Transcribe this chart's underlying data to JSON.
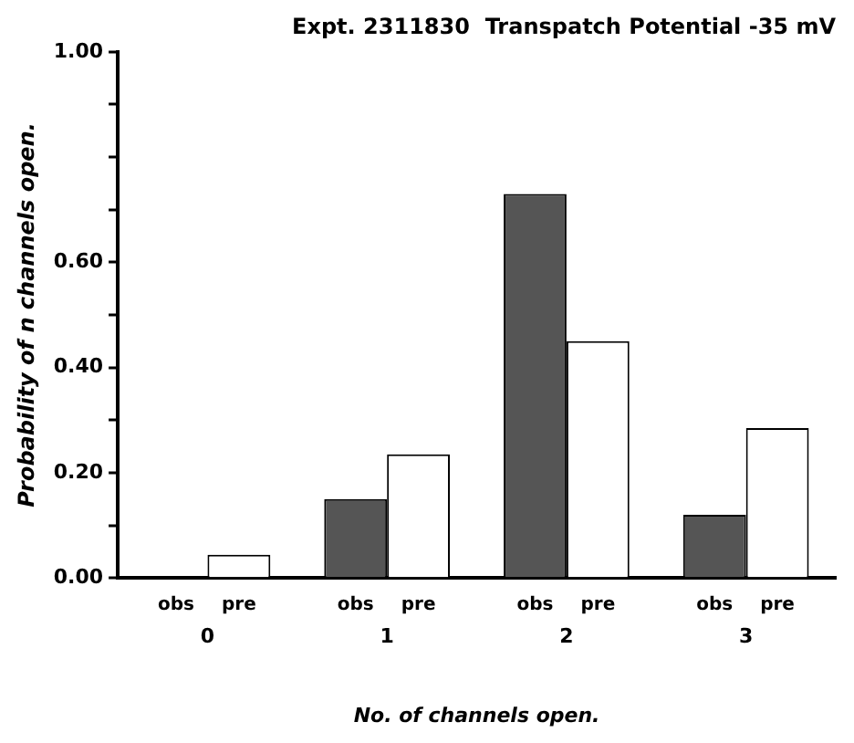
{
  "chart_data": {
    "type": "bar",
    "title": "Expt. 2311830  Transpatch Potential -35 mV",
    "xlabel": "No. of channels open.",
    "ylabel": "Probability of n channels open.",
    "categories": [
      "0",
      "1",
      "2",
      "3"
    ],
    "series": [
      {
        "name": "obs",
        "color": "#555555",
        "values": [
          0,
          0.15,
          0.73,
          0.12
        ]
      },
      {
        "name": "pre",
        "color": "#ffffff",
        "values": [
          0.044,
          0.235,
          0.45,
          0.285
        ]
      }
    ],
    "ylim": [
      0,
      1
    ],
    "yticks": [
      {
        "value": 0,
        "label": "0.00"
      },
      {
        "value": 0.1,
        "label": null
      },
      {
        "value": 0.2,
        "label": "0.20"
      },
      {
        "value": 0.3,
        "label": null
      },
      {
        "value": 0.4,
        "label": "0.40"
      },
      {
        "value": 0.5,
        "label": null
      },
      {
        "value": 0.6,
        "label": "0.60"
      },
      {
        "value": 0.7,
        "label": null
      },
      {
        "value": 0.8,
        "label": null
      },
      {
        "value": 0.9,
        "label": null
      },
      {
        "value": 1,
        "label": "1.00"
      }
    ],
    "grid": false,
    "legend": false
  }
}
